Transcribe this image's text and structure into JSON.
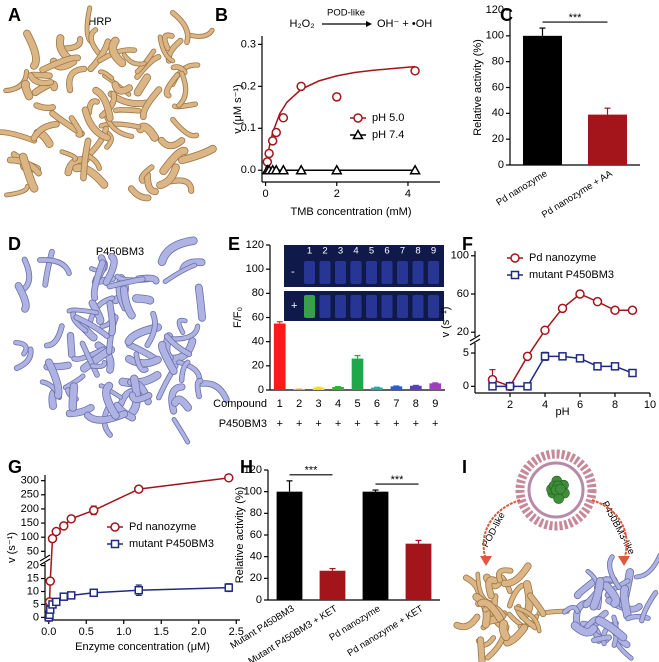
{
  "images": [
    {
      "panel": "A",
      "label": "HRP"
    },
    {
      "panel": "D",
      "label": "P450BM3"
    }
  ],
  "scheme": {
    "panel": "I",
    "left": "POD-like",
    "right": "P450BM3-like"
  },
  "chart_data": [
    {
      "type": "scatter",
      "panel": "B",
      "reaction": {
        "left": "H₂O₂",
        "arrow": "POD-like",
        "right": "OH⁻ + •OH"
      },
      "x_label": "TMB concentration (mM)",
      "y_label": "v (μM s⁻¹)",
      "xlim": [
        -0.1,
        4.9
      ],
      "xticks": [
        0,
        2,
        4
      ],
      "ylim": [
        -0.028,
        0.32
      ],
      "yticks": [
        {
          "value": 0,
          "label": "0.0"
        },
        0.1,
        0.2,
        0.3
      ],
      "fit_x": [
        0,
        0.1,
        0.2,
        0.4,
        0.6,
        1,
        1.5,
        2,
        2.5,
        3,
        3.5,
        4.2
      ],
      "series": [
        {
          "name": "pH 5.0",
          "color": "#a3141b",
          "marker": "circle",
          "x": [
            0.05,
            0.1,
            0.2,
            0.3,
            0.5,
            1,
            2,
            4.2
          ],
          "values": [
            0.02,
            0.04,
            0.07,
            0.09,
            0.125,
            0.2,
            0.175,
            0.237
          ],
          "errors": [
            0.005,
            0.003,
            0.004,
            0.003,
            0.005,
            0.006,
            0.008,
            0.006
          ],
          "fit": [
            0,
            0.054,
            0.09,
            0.135,
            0.162,
            0.193,
            0.213,
            0.225,
            0.233,
            0.238,
            0.242,
            0.247
          ]
        },
        {
          "name": "pH 7.4",
          "color": "#000000",
          "marker": "triangle",
          "x": [
            0.05,
            0.1,
            0.2,
            0.3,
            0.5,
            1,
            2,
            4.2
          ],
          "values": [
            0,
            0,
            0,
            0,
            0,
            0,
            0,
            0
          ],
          "fit": [
            0,
            0,
            0,
            0,
            0,
            0,
            0,
            0,
            0,
            0,
            0,
            0
          ]
        }
      ]
    },
    {
      "type": "bar",
      "panel": "C",
      "y_label": "Relative activity (%)",
      "categories": [
        "Pd nanozyme",
        "Pd nanozyme + AA"
      ],
      "values": [
        100,
        39
      ],
      "errors": [
        6,
        5
      ],
      "colors": [
        "#000000",
        "#a3141b"
      ],
      "ylim": [
        0,
        120
      ],
      "yticks": [
        0,
        20,
        40,
        60,
        80,
        100,
        120
      ],
      "significance": [
        "***"
      ]
    },
    {
      "type": "bar",
      "panel": "E",
      "y_label": "F/F₀",
      "categories": [
        "1",
        "2",
        "3",
        "4",
        "5",
        "6",
        "7",
        "8",
        "9"
      ],
      "values": [
        55,
        0.5,
        2,
        2.5,
        26,
        2,
        3,
        3.5,
        5.5
      ],
      "errors": [
        1.5,
        0.2,
        0.3,
        0.3,
        2.5,
        0.3,
        0.3,
        0.3,
        0.4
      ],
      "colors": [
        "#ff1a1a",
        "#ff9f1a",
        "#e8e020",
        "#2db52d",
        "#1fa84a",
        "#1ab0a0",
        "#2a5bd6",
        "#5a3fc0",
        "#9b3fbf"
      ],
      "ylim": [
        0,
        120
      ],
      "yticks": [
        0,
        20,
        40,
        60,
        80,
        100,
        120
      ],
      "row_labels": [
        "Compound",
        "P450BM3"
      ],
      "condition": [
        "+",
        "+",
        "+",
        "+",
        "+",
        "+",
        "+",
        "+",
        "+"
      ],
      "inset": {
        "columns": [
          "1",
          "2",
          "3",
          "4",
          "5",
          "6",
          "7",
          "8",
          "9"
        ],
        "rows": [
          "-",
          "+"
        ]
      }
    },
    {
      "type": "line",
      "panel": "F",
      "x_label": "pH",
      "y_label": "v (s⁻¹)",
      "xlim": [
        0,
        10
      ],
      "xticks": [
        2,
        4,
        6,
        8,
        10
      ],
      "y_segments": [
        {
          "ylim": [
            -1,
            6.5
          ],
          "yticks": [
            0,
            5
          ]
        },
        {
          "ylim": [
            15,
            105
          ],
          "yticks": [
            20,
            60,
            100
          ]
        }
      ],
      "series": [
        {
          "name": "Pd nanozyme",
          "color": "#a3141b",
          "marker": "circle",
          "x": [
            1,
            2,
            3,
            4,
            5,
            6,
            7,
            8,
            9
          ],
          "values": [
            1,
            0,
            4.5,
            22,
            45,
            60,
            52,
            43,
            43
          ],
          "errors": [
            1.5,
            0.3,
            0.3,
            1,
            1.5,
            1,
            1,
            1,
            1
          ]
        },
        {
          "name": "mutant P450BM3",
          "color": "#1f2a80",
          "marker": "square",
          "x": [
            1,
            2,
            3,
            4,
            5,
            6,
            7,
            8,
            9
          ],
          "values": [
            0,
            0,
            0,
            4.5,
            4.5,
            4.2,
            3,
            3,
            2
          ],
          "errors": [
            0.3,
            0.2,
            0.2,
            0.6,
            0.3,
            0.2,
            0.2,
            0.2,
            0.2
          ]
        }
      ]
    },
    {
      "type": "line",
      "panel": "G",
      "x_label": "Enzyme concentration (μM)",
      "y_label": "v (s⁻¹)",
      "xlim": [
        -0.05,
        2.55
      ],
      "xticks": [
        {
          "value": 0,
          "label": "0.0"
        },
        0.5,
        {
          "value": 1,
          "label": "1.0"
        },
        1.5,
        {
          "value": 2,
          "label": "2.0"
        },
        2.5
      ],
      "y_segments": [
        {
          "ylim": [
            -1,
            21
          ],
          "yticks": [
            0,
            5,
            10,
            15,
            20
          ]
        },
        {
          "ylim": [
            30,
            320
          ],
          "yticks": [
            50,
            100,
            150,
            200,
            250,
            300
          ]
        }
      ],
      "series": [
        {
          "name": "Pd nanozyme",
          "color": "#a3141b",
          "marker": "circle",
          "x": [
            0,
            0.01,
            0.02,
            0.05,
            0.1,
            0.2,
            0.3,
            0.6,
            1.2,
            2.4
          ],
          "values": [
            0,
            6,
            14,
            95,
            120,
            140,
            165,
            195,
            270,
            310
          ],
          "errors": [
            0.5,
            0.5,
            0.5,
            5,
            5,
            5,
            8,
            15,
            8,
            8
          ]
        },
        {
          "name": "mutant P450BM3",
          "color": "#1f2a80",
          "marker": "square",
          "x": [
            0,
            0.01,
            0.02,
            0.05,
            0.1,
            0.2,
            0.3,
            0.6,
            1.2,
            2.4
          ],
          "values": [
            0,
            1,
            3,
            5,
            6,
            8,
            8.5,
            9.5,
            10.5,
            11.5
          ],
          "errors": [
            0.2,
            0.3,
            0.3,
            0.4,
            0.5,
            0.5,
            0.6,
            1,
            2,
            1.5
          ]
        }
      ]
    },
    {
      "type": "bar",
      "panel": "H",
      "y_label": "Relative activity (%)",
      "categories": [
        "Mutant P450BM3",
        "Mutant P450BM3 + KET",
        "Pd nanozyme",
        "Pd nanozyme + KET"
      ],
      "values": [
        100,
        27,
        100,
        52
      ],
      "errors": [
        10,
        2,
        1.5,
        3
      ],
      "colors": [
        "#000000",
        "#a3141b",
        "#000000",
        "#a3141b"
      ],
      "ylim": [
        0,
        120
      ],
      "yticks": [
        0,
        20,
        40,
        60,
        80,
        100,
        120
      ],
      "significance": [
        "***",
        "***"
      ]
    }
  ]
}
